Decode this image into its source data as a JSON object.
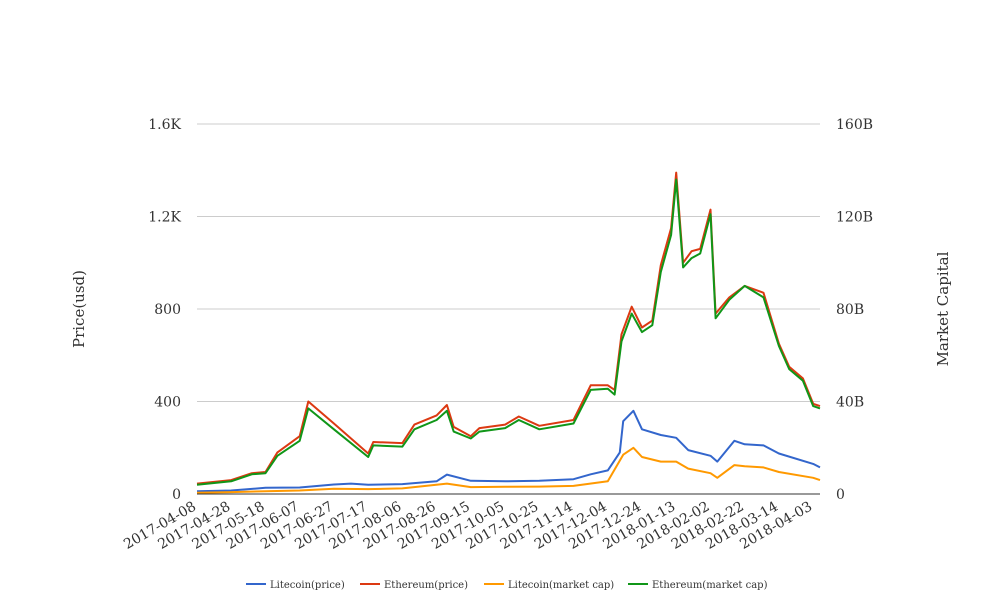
{
  "chart_data": {
    "type": "line",
    "y_left": {
      "label": "Price(usd)",
      "range": [
        0,
        1600
      ],
      "tick_values": [
        0,
        400,
        800,
        1200,
        1600
      ],
      "tick_labels": [
        "0",
        "400",
        "800",
        "1.2K",
        "1.6K"
      ]
    },
    "y_right": {
      "label": "Market Capital",
      "range": [
        0,
        160
      ],
      "tick_values": [
        0,
        40,
        80,
        120,
        160
      ],
      "tick_labels": [
        "0",
        "40B",
        "80B",
        "120B",
        "160B"
      ]
    },
    "x": {
      "range": [
        "2017-04-08",
        "2018-04-07"
      ],
      "tick_labels": [
        "2017-04-08",
        "2017-04-28",
        "2017-05-18",
        "2017-06-07",
        "2017-06-27",
        "2017-07-17",
        "2017-08-06",
        "2017-08-26",
        "2017-09-15",
        "2017-10-05",
        "2017-10-25",
        "2017-11-14",
        "2017-12-04",
        "2017-12-24",
        "2018-01-13",
        "2018-02-02",
        "2018-02-22",
        "2018-03-14",
        "2018-04-03"
      ]
    },
    "grid": true,
    "legend_position": "bottom",
    "series": [
      {
        "name": "Litecoin(price)",
        "axis": "left",
        "color": "#3366cc",
        "points": [
          [
            "2017-04-08",
            12
          ],
          [
            "2017-04-28",
            15
          ],
          [
            "2017-05-18",
            27
          ],
          [
            "2017-06-07",
            28
          ],
          [
            "2017-06-27",
            41
          ],
          [
            "2017-07-07",
            45
          ],
          [
            "2017-07-17",
            40
          ],
          [
            "2017-08-06",
            43
          ],
          [
            "2017-08-26",
            55
          ],
          [
            "2017-09-01",
            84
          ],
          [
            "2017-09-15",
            57
          ],
          [
            "2017-10-05",
            55
          ],
          [
            "2017-10-25",
            57
          ],
          [
            "2017-11-14",
            64
          ],
          [
            "2017-11-24",
            85
          ],
          [
            "2017-12-04",
            102
          ],
          [
            "2017-12-11",
            180
          ],
          [
            "2017-12-13",
            315
          ],
          [
            "2017-12-19",
            360
          ],
          [
            "2017-12-24",
            280
          ],
          [
            "2018-01-04",
            255
          ],
          [
            "2018-01-13",
            243
          ],
          [
            "2018-01-20",
            190
          ],
          [
            "2018-02-02",
            165
          ],
          [
            "2018-02-06",
            140
          ],
          [
            "2018-02-16",
            230
          ],
          [
            "2018-02-22",
            215
          ],
          [
            "2018-03-05",
            210
          ],
          [
            "2018-03-14",
            175
          ],
          [
            "2018-04-03",
            130
          ],
          [
            "2018-04-07",
            115
          ]
        ]
      },
      {
        "name": "Ethereum(price)",
        "axis": "left",
        "color": "#dc3912",
        "points": [
          [
            "2017-04-08",
            45
          ],
          [
            "2017-04-28",
            60
          ],
          [
            "2017-05-10",
            90
          ],
          [
            "2017-05-18",
            95
          ],
          [
            "2017-05-25",
            180
          ],
          [
            "2017-06-07",
            250
          ],
          [
            "2017-06-12",
            400
          ],
          [
            "2017-06-27",
            305
          ],
          [
            "2017-07-17",
            175
          ],
          [
            "2017-07-20",
            225
          ],
          [
            "2017-08-06",
            220
          ],
          [
            "2017-08-13",
            300
          ],
          [
            "2017-08-26",
            340
          ],
          [
            "2017-09-01",
            385
          ],
          [
            "2017-09-05",
            290
          ],
          [
            "2017-09-15",
            250
          ],
          [
            "2017-09-20",
            285
          ],
          [
            "2017-10-05",
            300
          ],
          [
            "2017-10-13",
            335
          ],
          [
            "2017-10-25",
            295
          ],
          [
            "2017-11-14",
            320
          ],
          [
            "2017-11-24",
            470
          ],
          [
            "2017-12-04",
            470
          ],
          [
            "2017-12-08",
            450
          ],
          [
            "2017-12-12",
            690
          ],
          [
            "2017-12-18",
            810
          ],
          [
            "2017-12-24",
            720
          ],
          [
            "2017-12-30",
            750
          ],
          [
            "2018-01-04",
            990
          ],
          [
            "2018-01-10",
            1150
          ],
          [
            "2018-01-13",
            1390
          ],
          [
            "2018-01-17",
            1000
          ],
          [
            "2018-01-22",
            1050
          ],
          [
            "2018-01-27",
            1060
          ],
          [
            "2018-02-02",
            1230
          ],
          [
            "2018-02-05",
            780
          ],
          [
            "2018-02-13",
            850
          ],
          [
            "2018-02-22",
            900
          ],
          [
            "2018-03-05",
            870
          ],
          [
            "2018-03-14",
            650
          ],
          [
            "2018-03-20",
            550
          ],
          [
            "2018-03-28",
            500
          ],
          [
            "2018-04-03",
            390
          ],
          [
            "2018-04-07",
            380
          ]
        ]
      },
      {
        "name": "Litecoin(market cap)",
        "axis": "right",
        "color": "#ff9900",
        "points": [
          [
            "2017-04-08",
            0.5
          ],
          [
            "2017-04-28",
            0.8
          ],
          [
            "2017-05-18",
            1.2
          ],
          [
            "2017-06-07",
            1.5
          ],
          [
            "2017-06-27",
            2.3
          ],
          [
            "2017-07-17",
            2.1
          ],
          [
            "2017-08-06",
            2.4
          ],
          [
            "2017-09-01",
            4.5
          ],
          [
            "2017-09-15",
            3.0
          ],
          [
            "2017-10-05",
            3.1
          ],
          [
            "2017-10-25",
            3.2
          ],
          [
            "2017-11-14",
            3.5
          ],
          [
            "2017-12-04",
            5.5
          ],
          [
            "2017-12-13",
            17
          ],
          [
            "2017-12-19",
            20
          ],
          [
            "2017-12-24",
            16
          ],
          [
            "2018-01-04",
            14
          ],
          [
            "2018-01-13",
            14
          ],
          [
            "2018-01-20",
            11
          ],
          [
            "2018-02-02",
            9
          ],
          [
            "2018-02-06",
            7
          ],
          [
            "2018-02-16",
            12.5
          ],
          [
            "2018-02-22",
            12
          ],
          [
            "2018-03-05",
            11.5
          ],
          [
            "2018-03-14",
            9.5
          ],
          [
            "2018-04-03",
            7
          ],
          [
            "2018-04-07",
            6
          ]
        ]
      },
      {
        "name": "Ethereum(market cap)",
        "axis": "right",
        "color": "#109618",
        "points": [
          [
            "2017-04-08",
            4
          ],
          [
            "2017-04-28",
            5.5
          ],
          [
            "2017-05-10",
            8.5
          ],
          [
            "2017-05-18",
            9
          ],
          [
            "2017-05-25",
            16.5
          ],
          [
            "2017-06-07",
            23
          ],
          [
            "2017-06-12",
            37
          ],
          [
            "2017-06-27",
            28
          ],
          [
            "2017-07-17",
            16
          ],
          [
            "2017-07-20",
            21
          ],
          [
            "2017-08-06",
            20.5
          ],
          [
            "2017-08-13",
            28
          ],
          [
            "2017-08-26",
            32
          ],
          [
            "2017-09-01",
            36
          ],
          [
            "2017-09-05",
            27
          ],
          [
            "2017-09-15",
            24
          ],
          [
            "2017-09-20",
            27
          ],
          [
            "2017-10-05",
            28.5
          ],
          [
            "2017-10-13",
            32
          ],
          [
            "2017-10-25",
            28
          ],
          [
            "2017-11-14",
            30.5
          ],
          [
            "2017-11-24",
            45
          ],
          [
            "2017-12-04",
            45.5
          ],
          [
            "2017-12-08",
            43
          ],
          [
            "2017-12-12",
            66
          ],
          [
            "2017-12-18",
            78
          ],
          [
            "2017-12-24",
            70
          ],
          [
            "2017-12-30",
            73
          ],
          [
            "2018-01-04",
            96
          ],
          [
            "2018-01-10",
            112
          ],
          [
            "2018-01-13",
            136
          ],
          [
            "2018-01-17",
            98
          ],
          [
            "2018-01-22",
            102
          ],
          [
            "2018-01-27",
            104
          ],
          [
            "2018-02-02",
            121
          ],
          [
            "2018-02-05",
            76
          ],
          [
            "2018-02-13",
            84
          ],
          [
            "2018-02-22",
            90
          ],
          [
            "2018-03-05",
            85
          ],
          [
            "2018-03-14",
            64
          ],
          [
            "2018-03-20",
            54
          ],
          [
            "2018-03-28",
            49
          ],
          [
            "2018-04-03",
            38
          ],
          [
            "2018-04-07",
            37
          ]
        ]
      }
    ]
  }
}
